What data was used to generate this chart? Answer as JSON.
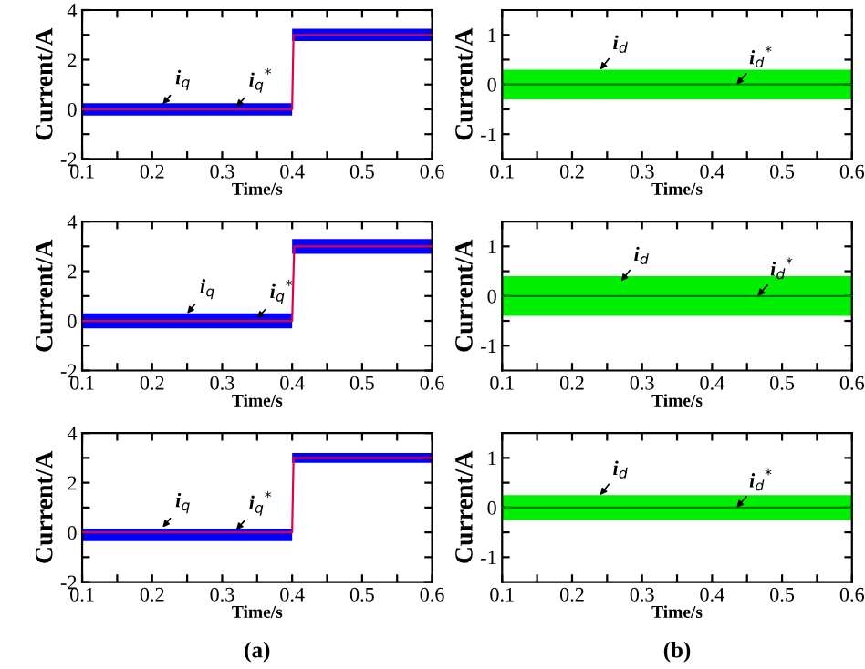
{
  "chart_data": [
    {
      "type": "line",
      "xlabel": "Time/s",
      "ylabel": "Current/A",
      "xlim": [
        0.1,
        0.6
      ],
      "ylim": [
        -2,
        4
      ],
      "xticks": [
        0.1,
        {
          "value": 0.15,
          "label": null
        },
        0.2,
        {
          "value": 0.25,
          "label": null
        },
        0.3,
        {
          "value": 0.35,
          "label": null
        },
        0.4,
        {
          "value": 0.45,
          "label": null
        },
        0.5,
        {
          "value": 0.55,
          "label": null
        },
        0.6
      ],
      "yticks": [
        -2,
        {
          "value": -1,
          "label": null
        },
        0,
        {
          "value": 1,
          "label": null
        },
        2,
        {
          "value": 3,
          "label": null
        },
        4
      ],
      "series": [
        {
          "color": "#0000ff",
          "x": [
            0.1,
            0.4,
            0.4,
            0.6
          ],
          "values": [
            null,
            null,
            null,
            null
          ],
          "lower": [
            -0.25,
            -0.25,
            2.75,
            2.75
          ],
          "upper": [
            0.25,
            0.25,
            3.25,
            3.25
          ]
        },
        {
          "color": "#e0004a",
          "x": [
            0.1,
            0.4,
            0.402,
            0.6
          ],
          "values": [
            0,
            0,
            3,
            3
          ]
        }
      ],
      "annotations": [
        {
          "text": "i$_{q}$",
          "x": 0.215,
          "y": 0.2
        },
        {
          "text": "i$_{q}$$^{*}$",
          "x": 0.32,
          "y": 0.1
        }
      ]
    },
    {
      "type": "line",
      "xlabel": "Time/s",
      "ylabel": "Current/A",
      "xlim": [
        0.1,
        0.6
      ],
      "ylim": [
        -1.5,
        1.5
      ],
      "xticks": [
        0.1,
        {
          "value": 0.15,
          "label": null
        },
        0.2,
        {
          "value": 0.25,
          "label": null
        },
        0.3,
        {
          "value": 0.35,
          "label": null
        },
        0.4,
        {
          "value": 0.45,
          "label": null
        },
        0.5,
        {
          "value": 0.55,
          "label": null
        },
        0.6
      ],
      "yticks": [
        -1,
        {
          "value": -0.5,
          "label": null
        },
        0,
        {
          "value": 0.5,
          "label": null
        },
        1
      ],
      "series": [
        {
          "color": "#00ee00",
          "x": [
            0.1,
            0.6
          ],
          "values": [
            null,
            null
          ],
          "lower": [
            -0.3,
            -0.3
          ],
          "upper": [
            0.3,
            0.3
          ]
        },
        {
          "color": "#008000",
          "x": [
            0.1,
            0.6
          ],
          "values": [
            0,
            0
          ]
        }
      ],
      "annotations": [
        {
          "text": "i$_{d}$",
          "x": 0.24,
          "y": 0.3
        },
        {
          "text": "i$_{d}$$^{*}$",
          "x": 0.435,
          "y": 0.0
        }
      ]
    },
    {
      "type": "line",
      "xlabel": "Time/s",
      "ylabel": "Current/A",
      "xlim": [
        0.1,
        0.6
      ],
      "ylim": [
        -2,
        4
      ],
      "xticks": [
        0.1,
        {
          "value": 0.15,
          "label": null
        },
        0.2,
        {
          "value": 0.25,
          "label": null
        },
        0.3,
        {
          "value": 0.35,
          "label": null
        },
        0.4,
        {
          "value": 0.45,
          "label": null
        },
        0.5,
        {
          "value": 0.55,
          "label": null
        },
        0.6
      ],
      "yticks": [
        -2,
        {
          "value": -1,
          "label": null
        },
        0,
        {
          "value": 1,
          "label": null
        },
        2,
        {
          "value": 3,
          "label": null
        },
        4
      ],
      "series": [
        {
          "color": "#0000ff",
          "x": [
            0.1,
            0.4,
            0.4,
            0.6
          ],
          "values": [
            null,
            null,
            null,
            null
          ],
          "lower": [
            -0.3,
            -0.3,
            2.7,
            2.7
          ],
          "upper": [
            0.3,
            0.3,
            3.3,
            3.3
          ]
        },
        {
          "color": "#e0004a",
          "x": [
            0.1,
            0.4,
            0.403,
            0.6
          ],
          "values": [
            0,
            0,
            3,
            3
          ]
        }
      ],
      "annotations": [
        {
          "text": "i$_{q}$",
          "x": 0.25,
          "y": 0.3
        },
        {
          "text": "i$_{q}$$^{*}$",
          "x": 0.35,
          "y": 0.1
        }
      ]
    },
    {
      "type": "line",
      "xlabel": "Time/s",
      "ylabel": "Current/A",
      "xlim": [
        0.1,
        0.6
      ],
      "ylim": [
        -1.5,
        1.5
      ],
      "xticks": [
        0.1,
        {
          "value": 0.15,
          "label": null
        },
        0.2,
        {
          "value": 0.25,
          "label": null
        },
        0.3,
        {
          "value": 0.35,
          "label": null
        },
        0.4,
        {
          "value": 0.45,
          "label": null
        },
        0.5,
        {
          "value": 0.55,
          "label": null
        },
        0.6
      ],
      "yticks": [
        -1,
        {
          "value": -0.5,
          "label": null
        },
        0,
        {
          "value": 0.5,
          "label": null
        },
        1
      ],
      "series": [
        {
          "color": "#00ee00",
          "x": [
            0.1,
            0.6
          ],
          "values": [
            null,
            null
          ],
          "lower": [
            -0.4,
            -0.4
          ],
          "upper": [
            0.4,
            0.4
          ]
        },
        {
          "color": "#008000",
          "x": [
            0.1,
            0.6
          ],
          "values": [
            0,
            0
          ]
        }
      ],
      "annotations": [
        {
          "text": "i$_{d}$",
          "x": 0.27,
          "y": 0.3
        },
        {
          "text": "i$_{d}$$^{*}$",
          "x": 0.465,
          "y": 0.0
        }
      ]
    },
    {
      "type": "line",
      "xlabel": "Time/s",
      "ylabel": "Current/A",
      "xlim": [
        0.1,
        0.6
      ],
      "ylim": [
        -2,
        4
      ],
      "xticks": [
        0.1,
        {
          "value": 0.15,
          "label": null
        },
        0.2,
        {
          "value": 0.25,
          "label": null
        },
        0.3,
        {
          "value": 0.35,
          "label": null
        },
        0.4,
        {
          "value": 0.45,
          "label": null
        },
        0.5,
        {
          "value": 0.55,
          "label": null
        },
        0.6
      ],
      "yticks": [
        -2,
        {
          "value": -1,
          "label": null
        },
        0,
        {
          "value": 1,
          "label": null
        },
        2,
        {
          "value": 3,
          "label": null
        },
        4
      ],
      "series": [
        {
          "color": "#0000ff",
          "x": [
            0.1,
            0.4,
            0.4,
            0.6
          ],
          "values": [
            null,
            null,
            null,
            null
          ],
          "lower": [
            -0.35,
            -0.35,
            2.8,
            2.8
          ],
          "upper": [
            0.15,
            0.15,
            3.2,
            3.2
          ]
        },
        {
          "color": "#e0004a",
          "x": [
            0.1,
            0.4,
            0.402,
            0.6
          ],
          "values": [
            0,
            0,
            3,
            3
          ]
        }
      ],
      "annotations": [
        {
          "text": "i$_{q}$",
          "x": 0.215,
          "y": 0.2
        },
        {
          "text": "i$_{q}$$^{*}$",
          "x": 0.32,
          "y": 0.1
        },
        "(a)"
      ]
    },
    {
      "type": "line",
      "xlabel": "Time/s",
      "ylabel": "Current/A",
      "xlim": [
        0.1,
        0.6
      ],
      "ylim": [
        -1.5,
        1.5
      ],
      "xticks": [
        0.1,
        {
          "value": 0.15,
          "label": null
        },
        0.2,
        {
          "value": 0.25,
          "label": null
        },
        0.3,
        {
          "value": 0.35,
          "label": null
        },
        0.4,
        {
          "value": 0.45,
          "label": null
        },
        0.5,
        {
          "value": 0.55,
          "label": null
        },
        0.6
      ],
      "yticks": [
        -1,
        {
          "value": -0.5,
          "label": null
        },
        0,
        {
          "value": 0.5,
          "label": null
        },
        1
      ],
      "series": [
        {
          "color": "#00ee00",
          "x": [
            0.1,
            0.6
          ],
          "values": [
            null,
            null
          ],
          "lower": [
            -0.25,
            -0.25
          ],
          "upper": [
            0.25,
            0.25
          ]
        },
        {
          "color": "#008000",
          "x": [
            0.1,
            0.6
          ],
          "values": [
            0,
            0
          ]
        }
      ],
      "annotations": [
        {
          "text": "i$_{d}$",
          "x": 0.24,
          "y": 0.25
        },
        {
          "text": "i$_{d}$$^{*}$",
          "x": 0.435,
          "y": 0.0
        },
        "(b)"
      ]
    }
  ]
}
